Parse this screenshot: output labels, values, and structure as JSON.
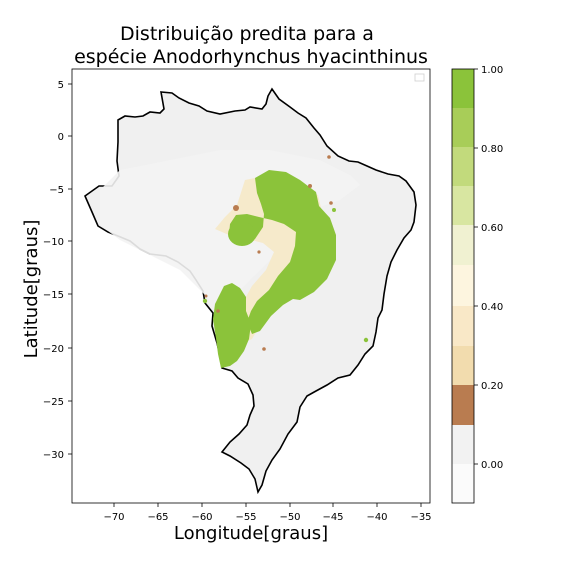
{
  "title_line1": "Distribuição predita para a",
  "title_line2": "espécie Anodorhynchus hyacinthinus",
  "x_label": "Longitude[graus]",
  "y_label": "Latitude[graus]",
  "x_ticks": [
    "−70",
    "−65",
    "−60",
    "−55",
    "−50",
    "−45",
    "−40",
    "−35"
  ],
  "y_ticks": [
    "5",
    "0",
    "−5",
    "−10",
    "−15",
    "−20",
    "−25",
    "−30"
  ],
  "colorbar_ticks": [
    "1.00",
    "0.80",
    "0.60",
    "0.40",
    "0.20",
    "0.00"
  ],
  "colors": {
    "background": "#f8f8f8",
    "low": "#efefef",
    "mid_low": "#b97c50",
    "mid": "#f7e6c3",
    "high": "#8ec13b",
    "outline": "#000000"
  }
}
